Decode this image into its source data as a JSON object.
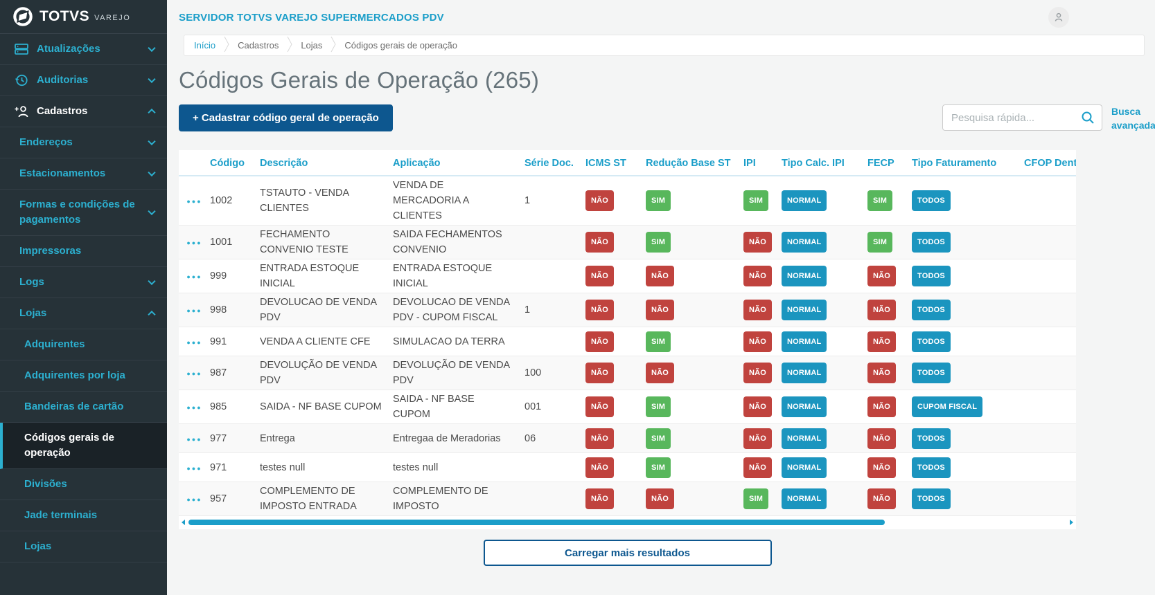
{
  "brand": {
    "name": "TOTVS",
    "suffix": "VAREJO"
  },
  "topbar": {
    "server_title": "SERVIDOR TOTVS VAREJO SUPERMERCADOS PDV"
  },
  "breadcrumb": [
    "Início",
    "Cadastros",
    "Lojas",
    "Códigos gerais de operação"
  ],
  "page": {
    "title": "Códigos Gerais de Operação (265)"
  },
  "toolbar": {
    "create_button": "+ Cadastrar código geral de operação",
    "search_placeholder": "Pesquisa rápida...",
    "advanced_search": "Busca avançada"
  },
  "sidebar": {
    "items": [
      {
        "label": "Atualizações",
        "icon": "server-icon",
        "chevron": "down",
        "level": 0
      },
      {
        "label": "Auditorias",
        "icon": "history-icon",
        "chevron": "down",
        "level": 0
      },
      {
        "label": "Cadastros",
        "icon": "person-add-icon",
        "chevron": "up",
        "level": 0,
        "expanded": true
      },
      {
        "label": "Endereços",
        "chevron": "down",
        "level": 1
      },
      {
        "label": "Estacionamentos",
        "chevron": "down",
        "level": 1
      },
      {
        "label": "Formas e condições de pagamentos",
        "chevron": "down",
        "level": 1
      },
      {
        "label": "Impressoras",
        "level": 1
      },
      {
        "label": "Logs",
        "chevron": "down",
        "level": 1
      },
      {
        "label": "Lojas",
        "chevron": "up",
        "level": 1,
        "expanded": true
      },
      {
        "label": "Adquirentes",
        "level": 2
      },
      {
        "label": "Adquirentes por loja",
        "level": 2
      },
      {
        "label": "Bandeiras de cartão",
        "level": 2
      },
      {
        "label": "Códigos gerais de operação",
        "level": 2,
        "active": true
      },
      {
        "label": "Divisões",
        "level": 2
      },
      {
        "label": "Jade terminais",
        "level": 2
      },
      {
        "label": "Lojas",
        "level": 2
      }
    ]
  },
  "table": {
    "columns": [
      "Código",
      "Descrição",
      "Aplicação",
      "Série Doc.",
      "ICMS ST",
      "Redução Base ST",
      "IPI",
      "Tipo Calc. IPI",
      "FECP",
      "Tipo Faturamento",
      "CFOP Dentro do"
    ],
    "rows": [
      {
        "codigo": "1002",
        "descricao": "TSTAUTO - VENDA CLIENTES",
        "aplicacao": "VENDA DE MERCADORIA A CLIENTES",
        "serie_doc": "1",
        "icms_st": "NÃO",
        "reducao_base_st": "SIM",
        "ipi": "SIM",
        "tipo_calc_ipi": "NORMAL",
        "fecp": "SIM",
        "tipo_faturamento": "TODOS"
      },
      {
        "codigo": "1001",
        "descricao": "FECHAMENTO CONVENIO TESTE",
        "aplicacao": "SAIDA FECHAMENTOS CONVENIO",
        "serie_doc": "",
        "icms_st": "NÃO",
        "reducao_base_st": "SIM",
        "ipi": "NÃO",
        "tipo_calc_ipi": "NORMAL",
        "fecp": "SIM",
        "tipo_faturamento": "TODOS"
      },
      {
        "codigo": "999",
        "descricao": "ENTRADA ESTOQUE INICIAL",
        "aplicacao": "ENTRADA ESTOQUE INICIAL",
        "serie_doc": "",
        "icms_st": "NÃO",
        "reducao_base_st": "NÃO",
        "ipi": "NÃO",
        "tipo_calc_ipi": "NORMAL",
        "fecp": "NÃO",
        "tipo_faturamento": "TODOS"
      },
      {
        "codigo": "998",
        "descricao": "DEVOLUCAO DE VENDA PDV",
        "aplicacao": "DEVOLUCAO DE VENDA PDV - CUPOM FISCAL",
        "serie_doc": "1",
        "icms_st": "NÃO",
        "reducao_base_st": "NÃO",
        "ipi": "NÃO",
        "tipo_calc_ipi": "NORMAL",
        "fecp": "NÃO",
        "tipo_faturamento": "TODOS"
      },
      {
        "codigo": "991",
        "descricao": "VENDA A CLIENTE CFE",
        "aplicacao": "SIMULACAO DA TERRA",
        "serie_doc": "",
        "icms_st": "NÃO",
        "reducao_base_st": "SIM",
        "ipi": "NÃO",
        "tipo_calc_ipi": "NORMAL",
        "fecp": "NÃO",
        "tipo_faturamento": "TODOS"
      },
      {
        "codigo": "987",
        "descricao": "DEVOLUÇÃO DE VENDA PDV",
        "aplicacao": "DEVOLUÇÃO DE VENDA PDV",
        "serie_doc": "100",
        "icms_st": "NÃO",
        "reducao_base_st": "NÃO",
        "ipi": "NÃO",
        "tipo_calc_ipi": "NORMAL",
        "fecp": "NÃO",
        "tipo_faturamento": "TODOS"
      },
      {
        "codigo": "985",
        "descricao": "SAIDA - NF BASE CUPOM",
        "aplicacao": "SAIDA - NF BASE CUPOM",
        "serie_doc": "001",
        "icms_st": "NÃO",
        "reducao_base_st": "SIM",
        "ipi": "NÃO",
        "tipo_calc_ipi": "NORMAL",
        "fecp": "NÃO",
        "tipo_faturamento": "CUPOM FISCAL"
      },
      {
        "codigo": "977",
        "descricao": "Entrega",
        "aplicacao": "Entregaa de Meradorias",
        "serie_doc": "06",
        "icms_st": "NÃO",
        "reducao_base_st": "SIM",
        "ipi": "NÃO",
        "tipo_calc_ipi": "NORMAL",
        "fecp": "NÃO",
        "tipo_faturamento": "TODOS"
      },
      {
        "codigo": "971",
        "descricao": "testes null",
        "aplicacao": "testes null",
        "serie_doc": "",
        "icms_st": "NÃO",
        "reducao_base_st": "SIM",
        "ipi": "NÃO",
        "tipo_calc_ipi": "NORMAL",
        "fecp": "NÃO",
        "tipo_faturamento": "TODOS"
      },
      {
        "codigo": "957",
        "descricao": "COMPLEMENTO DE IMPOSTO ENTRADA",
        "aplicacao": "COMPLEMENTO DE IMPOSTO",
        "serie_doc": "",
        "icms_st": "NÃO",
        "reducao_base_st": "NÃO",
        "ipi": "SIM",
        "tipo_calc_ipi": "NORMAL",
        "fecp": "NÃO",
        "tipo_faturamento": "TODOS"
      }
    ]
  },
  "footer": {
    "load_more": "Carregar mais resultados"
  },
  "colors": {
    "accent": "#2cb0d0",
    "teal_link": "#1b9ec9",
    "badge_red": "#c0433e",
    "badge_green": "#58b75c",
    "badge_blue": "#1b95bf",
    "btn_blue": "#0d578f",
    "sidebar_bg": "#263238",
    "sidebar_active_bg": "#1a2227"
  }
}
